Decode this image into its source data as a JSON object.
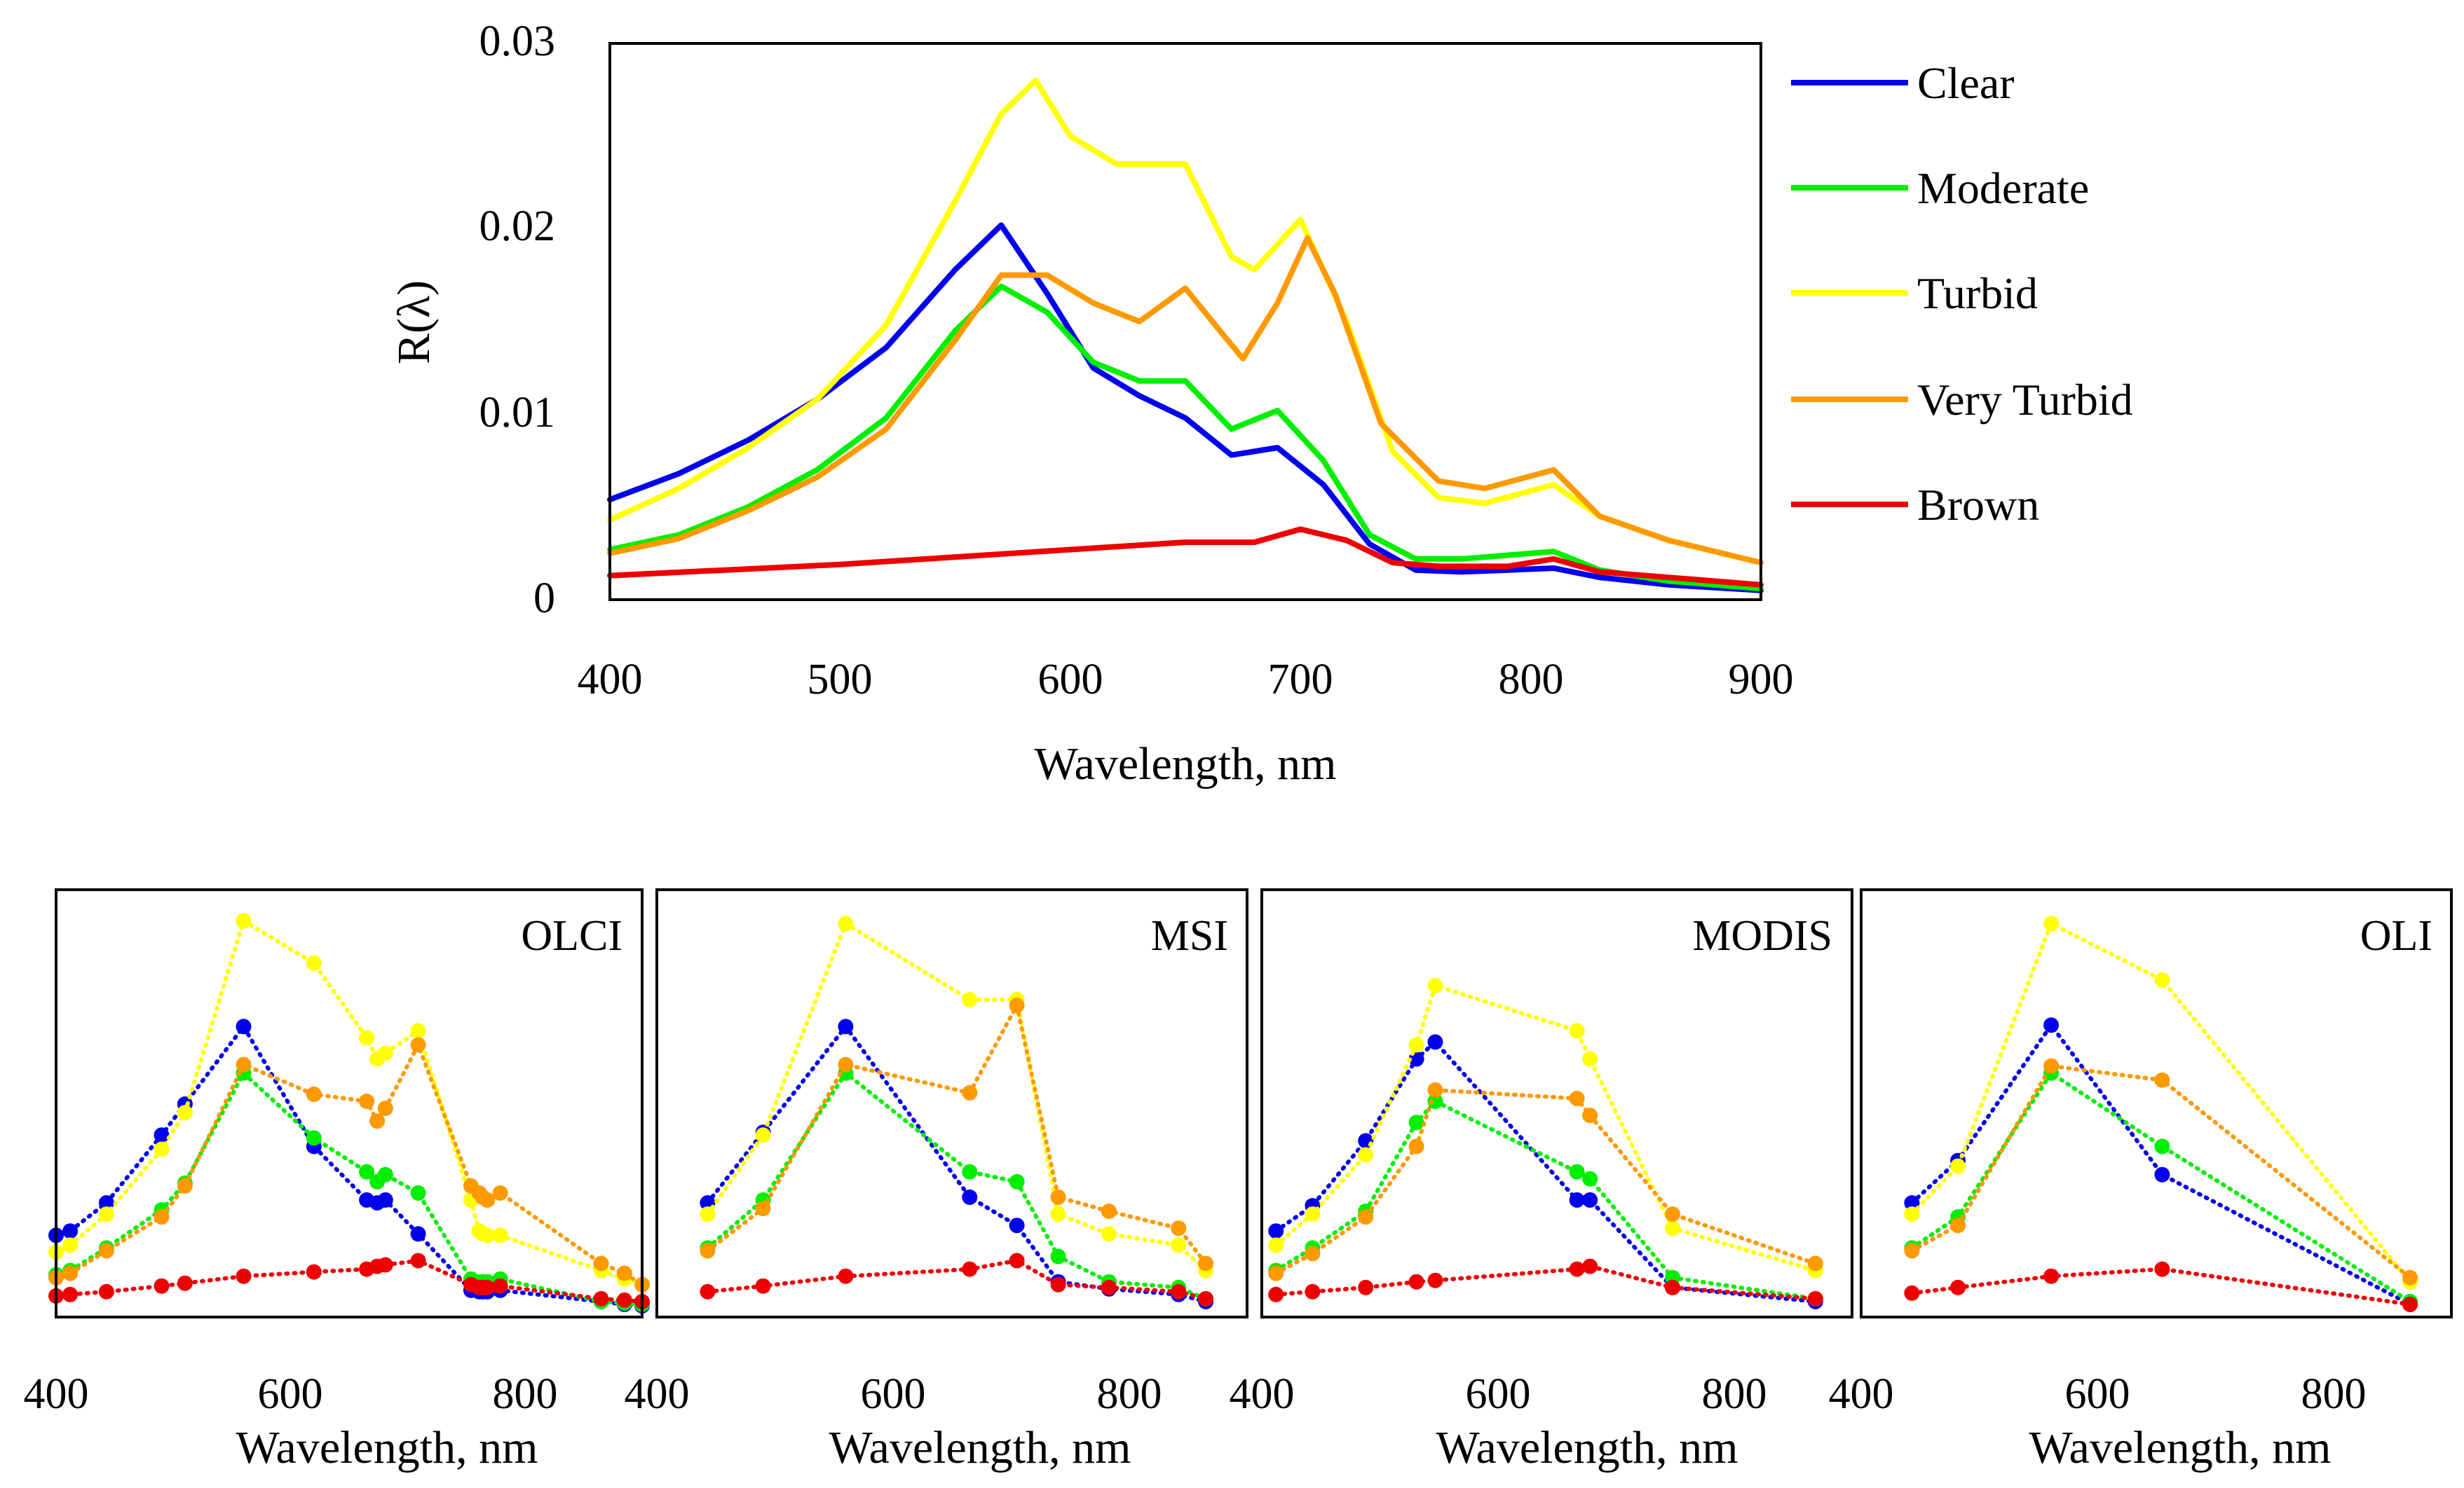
{
  "chart_data": [
    {
      "type": "line",
      "title": "",
      "xlabel": "Wavelength, nm",
      "ylabel": "R(λ)",
      "xlim": [
        400,
        900
      ],
      "ylim": [
        0,
        0.03
      ],
      "xticks": [
        400,
        500,
        600,
        700,
        800,
        900
      ],
      "xtick_labels": [
        "400",
        "500",
        "600",
        "700",
        "800",
        "900"
      ],
      "yticks": [
        0,
        0.01,
        0.02,
        0.03
      ],
      "ytick_labels": [
        "0",
        "0.01",
        "0.02",
        "0.03"
      ],
      "legend_position": "right",
      "series": [
        {
          "name": "Clear",
          "color": "#0000ee",
          "x": [
            400,
            430,
            460,
            490,
            520,
            550,
            570,
            590,
            610,
            630,
            650,
            670,
            690,
            710,
            730,
            750,
            770,
            790,
            810,
            830,
            860,
            900
          ],
          "y": [
            0.0054,
            0.0068,
            0.0086,
            0.0108,
            0.0136,
            0.0178,
            0.0202,
            0.0165,
            0.0125,
            0.011,
            0.0098,
            0.0078,
            0.0082,
            0.0062,
            0.003,
            0.0016,
            0.0015,
            0.0016,
            0.0017,
            0.0012,
            0.0008,
            0.0005
          ]
        },
        {
          "name": "Moderate",
          "color": "#00ee00",
          "x": [
            400,
            430,
            460,
            490,
            520,
            550,
            570,
            590,
            610,
            630,
            650,
            670,
            690,
            710,
            730,
            750,
            770,
            790,
            810,
            830,
            860,
            900
          ],
          "y": [
            0.0027,
            0.0035,
            0.005,
            0.007,
            0.0098,
            0.0145,
            0.0169,
            0.0155,
            0.0128,
            0.0118,
            0.0118,
            0.0092,
            0.0102,
            0.0075,
            0.0035,
            0.0022,
            0.0022,
            0.0024,
            0.0026,
            0.0016,
            0.001,
            0.0006
          ]
        },
        {
          "name": "Turbid",
          "color": "#ffff00",
          "x": [
            400,
            430,
            460,
            490,
            520,
            550,
            570,
            585,
            600,
            620,
            650,
            670,
            680,
            700,
            720,
            740,
            760,
            780,
            810,
            830,
            860,
            900
          ],
          "y": [
            0.0043,
            0.006,
            0.0082,
            0.0108,
            0.0148,
            0.0215,
            0.0262,
            0.028,
            0.025,
            0.0235,
            0.0235,
            0.0185,
            0.0178,
            0.0205,
            0.015,
            0.008,
            0.0055,
            0.0052,
            0.0062,
            0.0045,
            0.0032,
            0.002
          ]
        },
        {
          "name": "Very Turbid",
          "color": "#ff9900",
          "x": [
            400,
            430,
            460,
            490,
            520,
            550,
            570,
            590,
            610,
            630,
            650,
            665,
            675,
            690,
            703,
            715,
            735,
            760,
            780,
            810,
            830,
            860,
            900
          ],
          "y": [
            0.0025,
            0.0033,
            0.0048,
            0.0066,
            0.0092,
            0.014,
            0.0175,
            0.0175,
            0.016,
            0.015,
            0.0168,
            0.0145,
            0.013,
            0.016,
            0.0195,
            0.0165,
            0.0095,
            0.0064,
            0.006,
            0.007,
            0.0045,
            0.0032,
            0.002
          ]
        },
        {
          "name": "Brown",
          "color": "#ee0000",
          "x": [
            400,
            450,
            500,
            550,
            600,
            650,
            680,
            700,
            720,
            740,
            760,
            790,
            810,
            830,
            860,
            900
          ],
          "y": [
            0.0013,
            0.0016,
            0.0019,
            0.0023,
            0.0027,
            0.0031,
            0.0031,
            0.0038,
            0.0032,
            0.002,
            0.0018,
            0.0018,
            0.0022,
            0.0015,
            0.0012,
            0.0008
          ]
        }
      ]
    },
    {
      "type": "line",
      "panel": "OLCI",
      "xlabel": "Wavelength, nm",
      "xlim": [
        400,
        900
      ],
      "xticks": [
        400,
        600,
        800
      ],
      "xtick_labels": [
        "400",
        "600",
        "800"
      ],
      "ylim": [
        0,
        0.03
      ],
      "series": [
        {
          "name": "Clear",
          "color": "#0000ee",
          "x": [
            400,
            412,
            443,
            490,
            510,
            560,
            620,
            665,
            674,
            681,
            709,
            754,
            761,
            764,
            768,
            779,
            865,
            885,
            900
          ],
          "y": [
            0.0055,
            0.0058,
            0.0078,
            0.0126,
            0.0148,
            0.0203,
            0.0118,
            0.008,
            0.0078,
            0.008,
            0.0056,
            0.0016,
            0.0015,
            0.0015,
            0.0015,
            0.0016,
            0.0008,
            0.0006,
            0.0005
          ]
        },
        {
          "name": "Moderate",
          "color": "#00ee00",
          "x": [
            400,
            412,
            443,
            490,
            510,
            560,
            620,
            665,
            674,
            681,
            709,
            754,
            761,
            764,
            768,
            779,
            865,
            885,
            900
          ],
          "y": [
            0.0027,
            0.003,
            0.0046,
            0.0073,
            0.0092,
            0.017,
            0.0124,
            0.01,
            0.0093,
            0.0098,
            0.0085,
            0.0024,
            0.0022,
            0.0022,
            0.0022,
            0.0024,
            0.0008,
            0.0007,
            0.0006
          ]
        },
        {
          "name": "Turbid",
          "color": "#ffff00",
          "x": [
            400,
            412,
            443,
            490,
            510,
            560,
            620,
            665,
            674,
            681,
            709,
            754,
            761,
            764,
            768,
            779,
            865,
            885,
            900
          ],
          "y": [
            0.0043,
            0.0048,
            0.007,
            0.0116,
            0.0142,
            0.0278,
            0.0248,
            0.0195,
            0.018,
            0.0184,
            0.02,
            0.008,
            0.0058,
            0.0056,
            0.0055,
            0.0055,
            0.003,
            0.0024,
            0.002
          ]
        },
        {
          "name": "Very Turbid",
          "color": "#ff9900",
          "x": [
            400,
            412,
            443,
            490,
            510,
            560,
            620,
            665,
            674,
            681,
            709,
            754,
            761,
            764,
            768,
            779,
            865,
            885,
            900
          ],
          "y": [
            0.0025,
            0.0028,
            0.0044,
            0.0068,
            0.009,
            0.0176,
            0.0155,
            0.015,
            0.0136,
            0.0145,
            0.019,
            0.009,
            0.0085,
            0.0082,
            0.008,
            0.0085,
            0.0035,
            0.0028,
            0.002
          ]
        },
        {
          "name": "Brown",
          "color": "#ee0000",
          "x": [
            400,
            412,
            443,
            490,
            510,
            560,
            620,
            665,
            674,
            681,
            709,
            754,
            761,
            764,
            768,
            779,
            865,
            885,
            900
          ],
          "y": [
            0.0012,
            0.0013,
            0.0015,
            0.0019,
            0.0021,
            0.0026,
            0.0029,
            0.0031,
            0.0033,
            0.0034,
            0.0037,
            0.002,
            0.0018,
            0.0018,
            0.0018,
            0.0019,
            0.001,
            0.0009,
            0.0008
          ]
        }
      ]
    },
    {
      "type": "line",
      "panel": "MSI",
      "xlabel": "Wavelength, nm",
      "xlim": [
        400,
        900
      ],
      "xticks": [
        400,
        600,
        800
      ],
      "xtick_labels": [
        "400",
        "600",
        "800"
      ],
      "ylim": [
        0,
        0.03
      ],
      "series": [
        {
          "name": "Clear",
          "color": "#0000ee",
          "x": [
            443,
            490,
            560,
            665,
            705,
            740,
            783,
            842,
            865
          ],
          "y": [
            0.0078,
            0.0128,
            0.0203,
            0.0082,
            0.0062,
            0.0022,
            0.0017,
            0.0013,
            0.0008
          ]
        },
        {
          "name": "Moderate",
          "color": "#00ee00",
          "x": [
            443,
            490,
            560,
            665,
            705,
            740,
            783,
            842,
            865
          ],
          "y": [
            0.0046,
            0.008,
            0.017,
            0.01,
            0.0093,
            0.004,
            0.0022,
            0.0018,
            0.001
          ]
        },
        {
          "name": "Turbid",
          "color": "#ffff00",
          "x": [
            443,
            490,
            560,
            665,
            705,
            740,
            783,
            842,
            865
          ],
          "y": [
            0.007,
            0.0126,
            0.0276,
            0.0222,
            0.0222,
            0.007,
            0.0056,
            0.0048,
            0.003
          ]
        },
        {
          "name": "Very Turbid",
          "color": "#ff9900",
          "x": [
            443,
            490,
            560,
            665,
            705,
            740,
            783,
            842,
            865
          ],
          "y": [
            0.0044,
            0.0074,
            0.0176,
            0.0156,
            0.0218,
            0.0082,
            0.0072,
            0.006,
            0.0035
          ]
        },
        {
          "name": "Brown",
          "color": "#ee0000",
          "x": [
            443,
            490,
            560,
            665,
            705,
            740,
            783,
            842,
            865
          ],
          "y": [
            0.0015,
            0.0019,
            0.0026,
            0.0031,
            0.0037,
            0.002,
            0.0018,
            0.0015,
            0.001
          ]
        }
      ]
    },
    {
      "type": "line",
      "panel": "MODIS",
      "xlabel": "Wavelength, nm",
      "xlim": [
        400,
        900
      ],
      "xticks": [
        400,
        600,
        800
      ],
      "xtick_labels": [
        "400",
        "600",
        "800"
      ],
      "ylim": [
        0,
        0.03
      ],
      "series": [
        {
          "name": "Clear",
          "color": "#0000ee",
          "x": [
            412,
            443,
            488,
            531,
            547,
            667,
            678,
            748,
            869
          ],
          "y": [
            0.0058,
            0.0076,
            0.0122,
            0.018,
            0.0192,
            0.008,
            0.008,
            0.0018,
            0.0008
          ]
        },
        {
          "name": "Moderate",
          "color": "#00ee00",
          "x": [
            412,
            443,
            488,
            531,
            547,
            667,
            678,
            748,
            869
          ],
          "y": [
            0.003,
            0.0046,
            0.0072,
            0.0135,
            0.015,
            0.01,
            0.0095,
            0.0025,
            0.001
          ]
        },
        {
          "name": "Turbid",
          "color": "#ffff00",
          "x": [
            412,
            443,
            488,
            531,
            547,
            667,
            678,
            748,
            869
          ],
          "y": [
            0.0048,
            0.007,
            0.0112,
            0.019,
            0.0232,
            0.02,
            0.018,
            0.006,
            0.003
          ]
        },
        {
          "name": "Very Turbid",
          "color": "#ff9900",
          "x": [
            412,
            443,
            488,
            531,
            547,
            667,
            678,
            748,
            869
          ],
          "y": [
            0.0028,
            0.0042,
            0.0068,
            0.0118,
            0.0158,
            0.0152,
            0.014,
            0.007,
            0.0035
          ]
        },
        {
          "name": "Brown",
          "color": "#ee0000",
          "x": [
            412,
            443,
            488,
            531,
            547,
            667,
            678,
            748,
            869
          ],
          "y": [
            0.0013,
            0.0015,
            0.0018,
            0.0022,
            0.0023,
            0.0031,
            0.0033,
            0.0018,
            0.001
          ]
        }
      ]
    },
    {
      "type": "line",
      "panel": "OLI",
      "xlabel": "Wavelength, nm",
      "xlim": [
        400,
        900
      ],
      "xticks": [
        400,
        600,
        800
      ],
      "xtick_labels": [
        "400",
        "600",
        "800"
      ],
      "ylim": [
        0,
        0.03
      ],
      "series": [
        {
          "name": "Clear",
          "color": "#0000ee",
          "x": [
            443,
            482,
            561,
            655,
            865
          ],
          "y": [
            0.0078,
            0.0108,
            0.0204,
            0.0098,
            0.0006
          ]
        },
        {
          "name": "Moderate",
          "color": "#00ee00",
          "x": [
            443,
            482,
            561,
            655,
            865
          ],
          "y": [
            0.0046,
            0.0068,
            0.017,
            0.0118,
            0.0008
          ]
        },
        {
          "name": "Turbid",
          "color": "#ffff00",
          "x": [
            443,
            482,
            561,
            655,
            865
          ],
          "y": [
            0.007,
            0.0104,
            0.0276,
            0.0236,
            0.0022
          ]
        },
        {
          "name": "Very Turbid",
          "color": "#ff9900",
          "x": [
            443,
            482,
            561,
            655,
            865
          ],
          "y": [
            0.0044,
            0.0062,
            0.0175,
            0.0165,
            0.0025
          ]
        },
        {
          "name": "Brown",
          "color": "#ee0000",
          "x": [
            443,
            482,
            561,
            655,
            865
          ],
          "y": [
            0.0014,
            0.0018,
            0.0026,
            0.0031,
            0.0006
          ]
        }
      ]
    }
  ]
}
